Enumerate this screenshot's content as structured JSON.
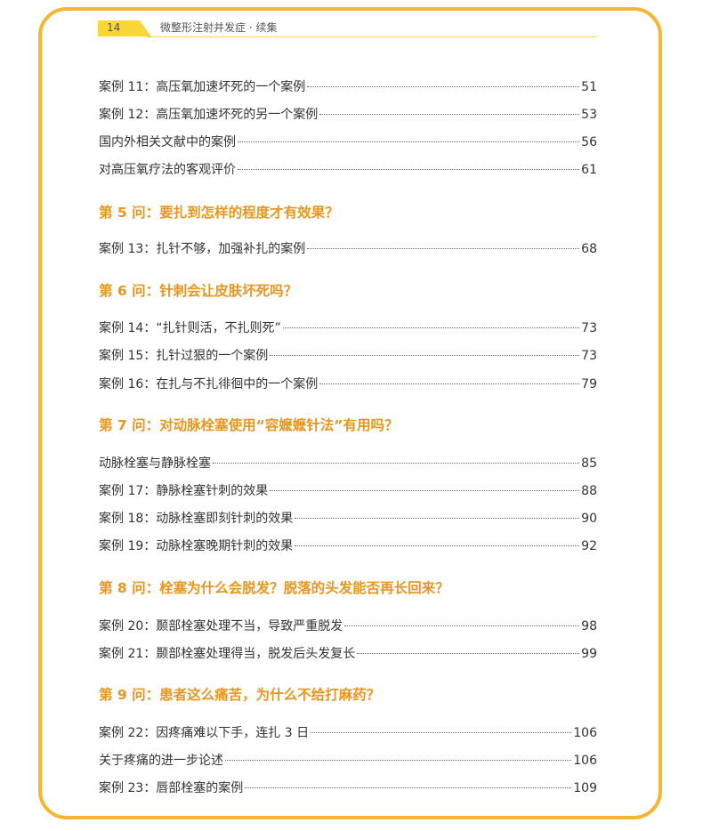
{
  "header": {
    "page_number": "14",
    "running_title": "微整形注射并发症 · 续集"
  },
  "colors": {
    "frame": "#f5b731",
    "tab": "#f9d835",
    "heading": "#e8961e"
  },
  "toc": [
    {
      "type": "entry",
      "title": "案例 11：高压氧加速坏死的一个案例",
      "page": "51"
    },
    {
      "type": "entry",
      "title": "案例 12：高压氧加速坏死的另一个案例",
      "page": "53"
    },
    {
      "type": "entry",
      "title": "国内外相关文献中的案例 ",
      "page": "56"
    },
    {
      "type": "entry",
      "title": "对高压氧疗法的客观评价 ",
      "page": "61"
    },
    {
      "type": "heading",
      "title": "第 5 问：要扎到怎样的程度才有效果？"
    },
    {
      "type": "entry",
      "title": "案例 13：扎针不够，加强补扎的案例",
      "page": "68"
    },
    {
      "type": "heading",
      "title": "第 6 问：针刺会让皮肤坏死吗？"
    },
    {
      "type": "entry",
      "title": "案例 14：“扎针则活，不扎则死”",
      "page": "73"
    },
    {
      "type": "entry",
      "title": "案例 15：扎针过狠的一个案例",
      "page": "73"
    },
    {
      "type": "entry",
      "title": "案例 16：在扎与不扎徘徊中的一个案例",
      "page": "79"
    },
    {
      "type": "heading",
      "title": "第 7 问：对动脉栓塞使用“容嬷嬷针法”有用吗？"
    },
    {
      "type": "entry",
      "title": "动脉栓塞与静脉栓塞 ",
      "page": "85"
    },
    {
      "type": "entry",
      "title": "案例 17：静脉栓塞针刺的效果",
      "page": "88"
    },
    {
      "type": "entry",
      "title": "案例 18：动脉栓塞即刻针刺的效果",
      "page": "90"
    },
    {
      "type": "entry",
      "title": "案例 19：动脉栓塞晚期针刺的效果",
      "page": "92"
    },
    {
      "type": "heading",
      "title": "第 8 问：栓塞为什么会脱发？脱落的头发能否再长回来？"
    },
    {
      "type": "entry",
      "title": "案例 20：颞部栓塞处理不当，导致严重脱发 ",
      "page": "98"
    },
    {
      "type": "entry",
      "title": "案例 21：颞部栓塞处理得当，脱发后头发复长 ",
      "page": "99"
    },
    {
      "type": "heading",
      "title": "第 9 问：患者这么痛苦，为什么不给打麻药？"
    },
    {
      "type": "entry",
      "title": "案例 22：因疼痛难以下手，连扎 3 日 ",
      "page": "106"
    },
    {
      "type": "entry",
      "title": "关于疼痛的进一步论述 ",
      "page": "106"
    },
    {
      "type": "entry",
      "title": "案例 23：唇部栓塞的案例 ",
      "page": "109"
    }
  ]
}
